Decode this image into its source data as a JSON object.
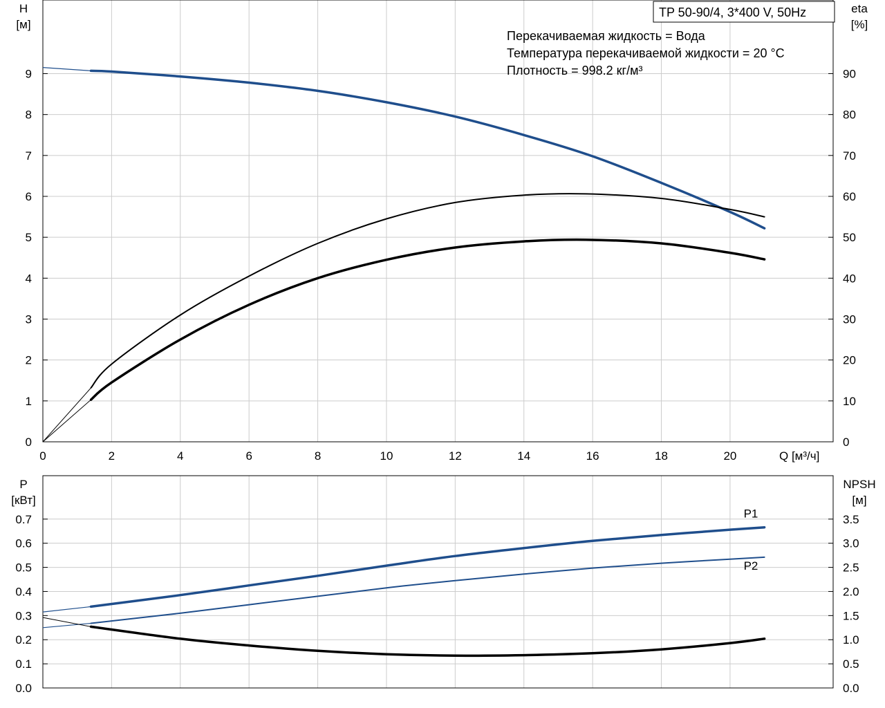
{
  "colors": {
    "blue": "#1f4e8c",
    "black": "#000000",
    "grid": "#cccccc",
    "frame": "#000000"
  },
  "chart_data": [
    {
      "type": "line",
      "panel": "top",
      "title": "TP 50-90/4, 3*400 V, 50Hz",
      "info_lines": [
        "Перекачиваемая жидкость = Вода",
        "Температура перекачиваемой жидкости = 20 °C",
        "Плотность = 998.2 кг/м³"
      ],
      "xlabel": "Q [м³/ч]",
      "y_left_label": [
        "H",
        "[м]"
      ],
      "y_right_label": [
        "eta",
        "[%]"
      ],
      "xlim": [
        0,
        23
      ],
      "ylim_left": [
        0,
        10.8
      ],
      "ylim_right": [
        0,
        108
      ],
      "x_ticks": [
        0,
        2,
        4,
        6,
        8,
        10,
        12,
        14,
        16,
        18,
        20
      ],
      "y_left_ticks": [
        0,
        1,
        2,
        3,
        4,
        5,
        6,
        7,
        8,
        9
      ],
      "y_right_ticks": [
        0,
        10,
        20,
        30,
        40,
        50,
        60,
        70,
        80,
        90
      ],
      "series": [
        {
          "axis": "left",
          "color": "blue",
          "width": 3.5,
          "extension_width": 1.2,
          "x": [
            1.4,
            2,
            4,
            6,
            8,
            10,
            12,
            14,
            16,
            18,
            20,
            21
          ],
          "values": [
            9.07,
            9.05,
            8.93,
            8.78,
            8.58,
            8.3,
            7.95,
            7.5,
            6.98,
            6.33,
            5.62,
            5.22
          ],
          "extension": {
            "x": [
              0,
              1.4
            ],
            "values": [
              9.15,
              9.07
            ]
          }
        },
        {
          "axis": "right",
          "color": "black",
          "width": 2,
          "extension_width": 1,
          "x": [
            1.4,
            2,
            4,
            6,
            8,
            10,
            12,
            14,
            15.8,
            18,
            20,
            21
          ],
          "values": [
            13.2,
            19,
            31,
            40.5,
            48.5,
            54.5,
            58.5,
            60.3,
            60.6,
            59.5,
            56.8,
            55
          ],
          "extension": {
            "x": [
              0,
              1.4
            ],
            "values": [
              0,
              13.2
            ]
          }
        },
        {
          "axis": "right",
          "color": "black",
          "width": 3.5,
          "extension_width": 1,
          "x": [
            1.4,
            2,
            4,
            6,
            8,
            10,
            12,
            14,
            15.8,
            18,
            20,
            21
          ],
          "values": [
            10.3,
            14.5,
            25,
            33.5,
            40,
            44.5,
            47.5,
            49,
            49.4,
            48.5,
            46.2,
            44.6
          ],
          "extension": {
            "x": [
              0,
              1.4
            ],
            "values": [
              0,
              10.3
            ]
          }
        }
      ]
    },
    {
      "type": "line",
      "panel": "bottom",
      "y_left_label": [
        "P",
        "[кВт]"
      ],
      "y_right_label": [
        "NPSH",
        "[м]"
      ],
      "xlim": [
        0,
        23
      ],
      "ylim_left": [
        0,
        0.88
      ],
      "ylim_right": [
        0,
        4.4
      ],
      "y_left_ticks": [
        0.0,
        0.1,
        0.2,
        0.3,
        0.4,
        0.5,
        0.6,
        0.7
      ],
      "y_right_ticks": [
        0.0,
        0.5,
        1.0,
        1.5,
        2.0,
        2.5,
        3.0,
        3.5
      ],
      "series": [
        {
          "name": "P1",
          "axis": "left",
          "color": "blue",
          "width": 3.5,
          "extension_width": 1.2,
          "x": [
            1.4,
            4,
            6,
            8,
            10,
            12,
            14,
            16,
            18,
            20,
            21
          ],
          "values": [
            0.337,
            0.385,
            0.425,
            0.465,
            0.507,
            0.547,
            0.58,
            0.61,
            0.634,
            0.656,
            0.666
          ],
          "extension": {
            "x": [
              0,
              1.4
            ],
            "values": [
              0.315,
              0.337
            ]
          }
        },
        {
          "name": "P2",
          "axis": "left",
          "color": "blue",
          "width": 2,
          "extension_width": 1.2,
          "x": [
            1.4,
            4,
            6,
            8,
            10,
            12,
            14,
            16,
            18,
            20,
            21
          ],
          "values": [
            0.268,
            0.31,
            0.345,
            0.38,
            0.415,
            0.445,
            0.472,
            0.497,
            0.517,
            0.534,
            0.542
          ],
          "extension": {
            "x": [
              0,
              1.4
            ],
            "values": [
              0.25,
              0.268
            ]
          }
        },
        {
          "axis": "right",
          "color": "black",
          "width": 3.5,
          "extension_width": 1,
          "x": [
            1.4,
            4,
            6,
            8,
            10,
            12,
            14,
            16,
            18,
            20,
            21
          ],
          "values": [
            1.27,
            1.02,
            0.88,
            0.77,
            0.7,
            0.67,
            0.68,
            0.72,
            0.8,
            0.93,
            1.02
          ],
          "extension": {
            "x": [
              0,
              1.4
            ],
            "values": [
              1.46,
              1.27
            ]
          }
        }
      ]
    }
  ]
}
